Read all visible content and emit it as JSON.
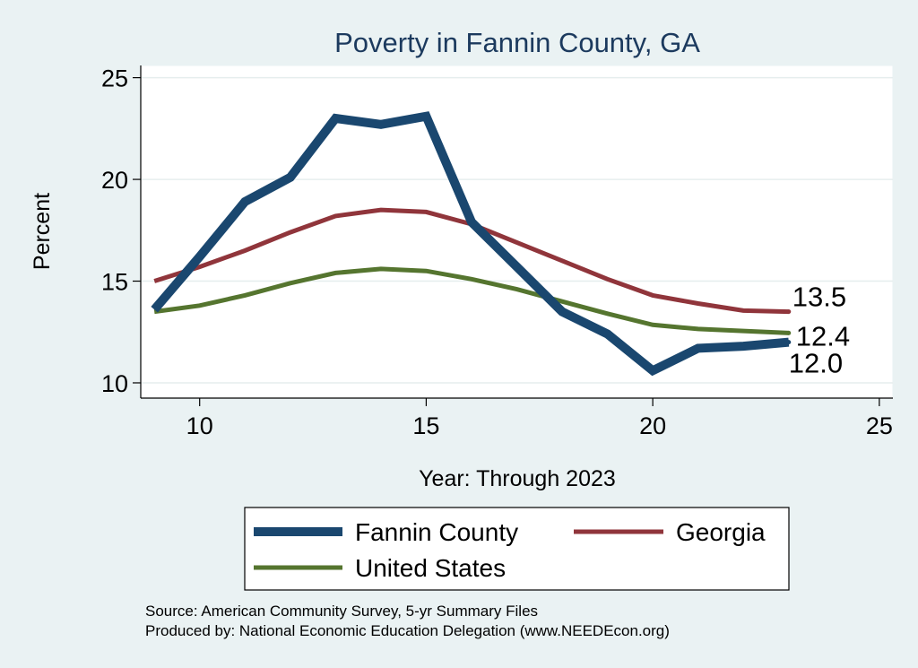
{
  "chart_data": {
    "type": "line",
    "title": "Poverty in Fannin County, GA",
    "xlabel": "Year: Through 2023",
    "ylabel": "Percent",
    "xlim": [
      8.7,
      25.3
    ],
    "ylim": [
      9.25,
      25.6
    ],
    "x_ticks": [
      "10",
      "15",
      "20",
      "25"
    ],
    "y_ticks": [
      "10",
      "15",
      "20",
      "25"
    ],
    "grid": true,
    "legend": "bottom",
    "x": [
      9,
      10,
      11,
      12,
      13,
      14,
      15,
      16,
      17,
      18,
      19,
      20,
      21,
      22,
      23
    ],
    "series": [
      {
        "name": "Fannin County",
        "color": "#1a476f",
        "values": [
          13.6,
          16.2,
          18.9,
          20.1,
          23.0,
          22.7,
          23.1,
          17.9,
          15.7,
          13.5,
          12.4,
          10.6,
          11.7,
          11.8,
          12.0
        ],
        "end_label": "12.0"
      },
      {
        "name": "Georgia",
        "color": "#90353b",
        "values": [
          15.0,
          15.7,
          16.5,
          17.4,
          18.2,
          18.5,
          18.4,
          17.8,
          16.9,
          16.0,
          15.1,
          14.3,
          13.9,
          13.55,
          13.5
        ],
        "end_label": "13.5"
      },
      {
        "name": "United States",
        "color": "#55752f",
        "values": [
          13.5,
          13.8,
          14.3,
          14.9,
          15.4,
          15.6,
          15.5,
          15.1,
          14.6,
          14.0,
          13.4,
          12.85,
          12.65,
          12.55,
          12.45
        ],
        "end_label": "12.4"
      }
    ]
  },
  "notes": {
    "source": "Source: American Community Survey, 5-yr Summary Files",
    "produced": "Produced by: National Economic Education Delegation (www.NEEDEcon.org)"
  }
}
